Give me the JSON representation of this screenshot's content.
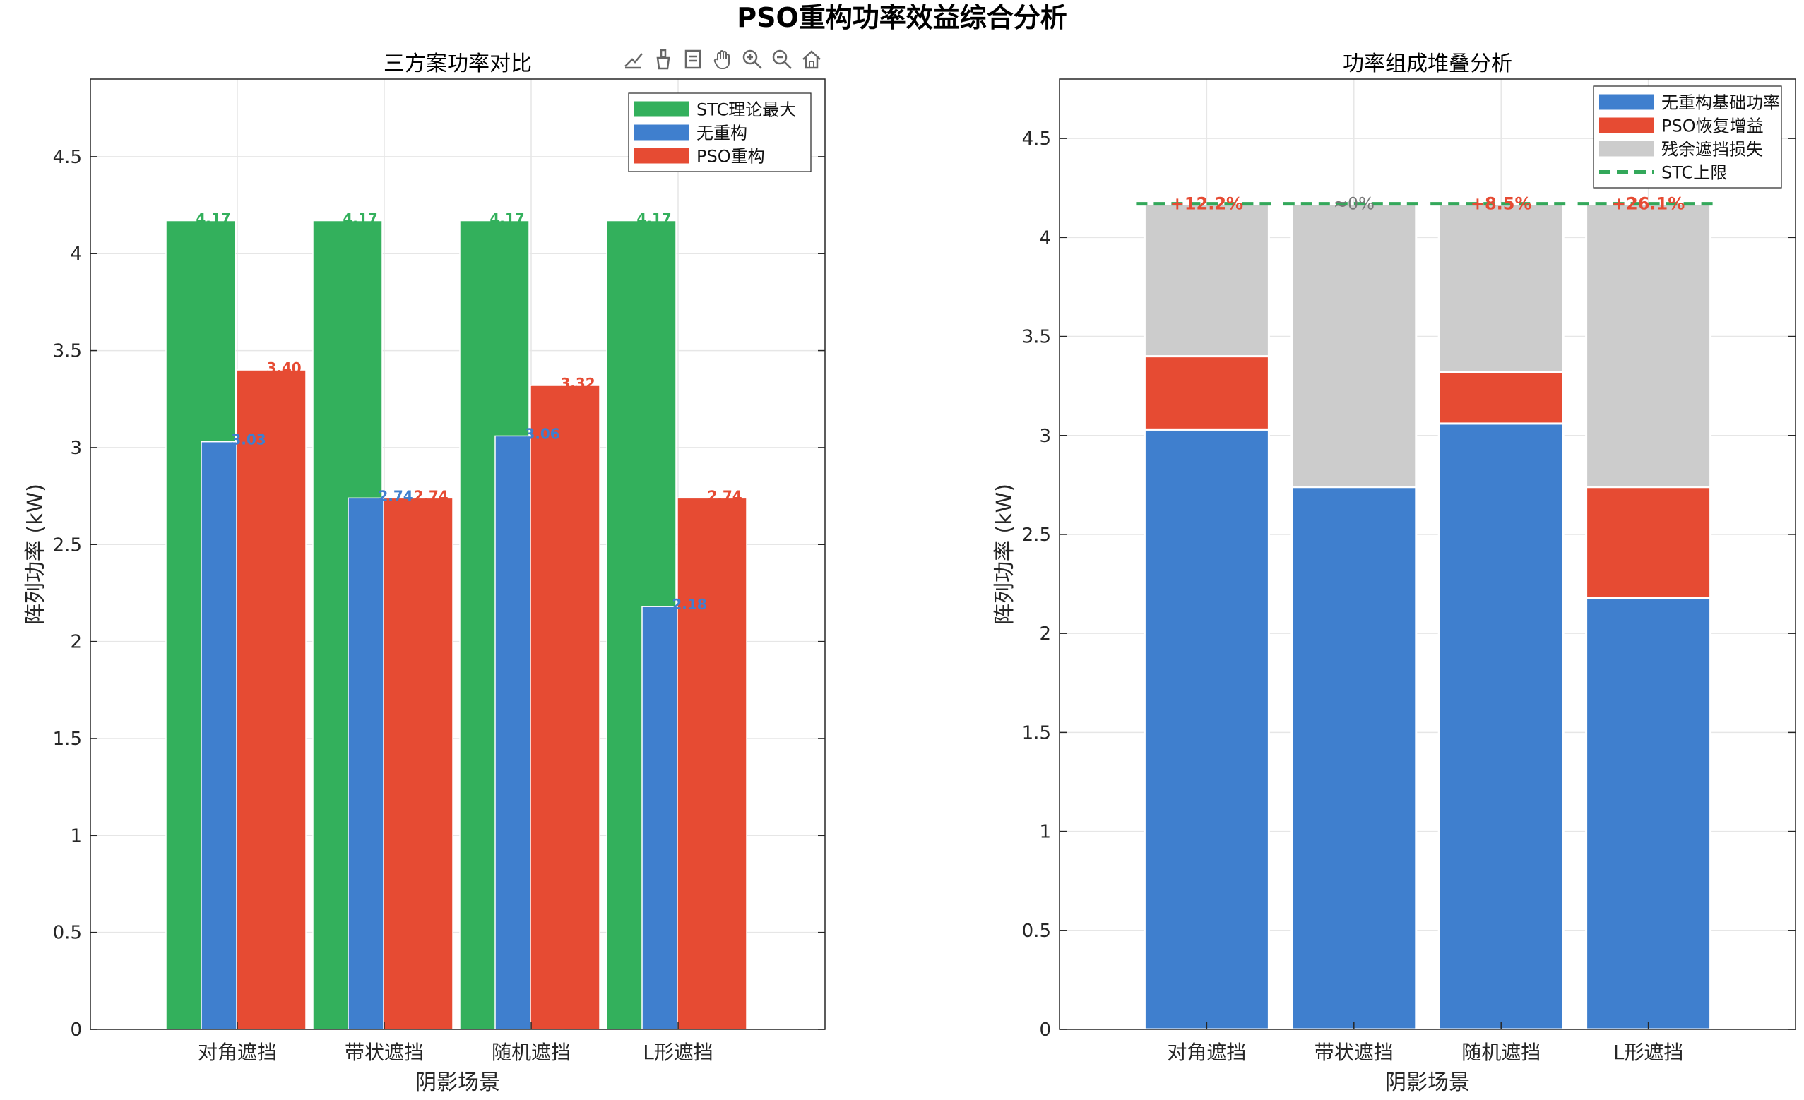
{
  "figure": {
    "title": "PSO重构功率效益综合分析"
  },
  "toolbar": {
    "icons": [
      "export-icon",
      "brush-icon",
      "datatip-icon",
      "pan-icon",
      "zoom-in-icon",
      "zoom-out-icon",
      "home-icon"
    ]
  },
  "colors": {
    "stc": "#33b05c",
    "base": "#3f7fce",
    "pso": "#e64b33",
    "loss": "#cccccc",
    "stc_line": "#33a85a",
    "grid": "#e6e6e6",
    "axis": "#262626"
  },
  "chart_data": [
    {
      "type": "bar",
      "title": "三方案功率对比",
      "xlabel": "阴影场景",
      "ylabel": "阵列功率 (kW)",
      "categories": [
        "对角遮挡",
        "带状遮挡",
        "随机遮挡",
        "L形遮挡"
      ],
      "ylim": [
        0,
        4.9
      ],
      "yticks": [
        "0",
        "0.5",
        "1",
        "1.5",
        "2",
        "2.5",
        "3",
        "3.5",
        "4",
        "4.5"
      ],
      "grid": true,
      "legend_position": "top-right",
      "series": [
        {
          "name": "STC理论最大",
          "values": [
            4.17,
            4.17,
            4.17,
            4.17
          ],
          "labels": [
            "4.17",
            "4.17",
            "4.17",
            "4.17"
          ]
        },
        {
          "name": "无重构",
          "values": [
            3.03,
            2.74,
            3.06,
            2.18
          ],
          "labels": [
            "3.03",
            "2.74",
            "3.06",
            "2.18"
          ]
        },
        {
          "name": "PSO重构",
          "values": [
            3.4,
            2.74,
            3.32,
            2.74
          ],
          "labels": [
            "3.40",
            "2.74",
            "3.32",
            "2.74"
          ]
        }
      ]
    },
    {
      "type": "bar",
      "stacked": true,
      "title": "功率组成堆叠分析",
      "xlabel": "阴影场景",
      "ylabel": "阵列功率 (kW)",
      "categories": [
        "对角遮挡",
        "带状遮挡",
        "随机遮挡",
        "L形遮挡"
      ],
      "ylim": [
        0,
        4.8
      ],
      "yticks": [
        "0",
        "0.5",
        "1",
        "1.5",
        "2",
        "2.5",
        "3",
        "3.5",
        "4",
        "4.5"
      ],
      "grid": true,
      "legend_position": "top-right",
      "series": [
        {
          "name": "无重构基础功率",
          "values": [
            3.03,
            2.74,
            3.06,
            2.18
          ]
        },
        {
          "name": "PSO恢复增益",
          "values": [
            0.37,
            0.0,
            0.26,
            0.56
          ]
        },
        {
          "name": "残余遮挡损失",
          "values": [
            0.77,
            1.43,
            0.85,
            1.43
          ]
        }
      ],
      "reference_line": {
        "name": "STC上限",
        "value": 4.17
      },
      "annotations": [
        "+12.2%",
        "≈0%",
        "+8.5%",
        "+26.1%"
      ]
    }
  ]
}
